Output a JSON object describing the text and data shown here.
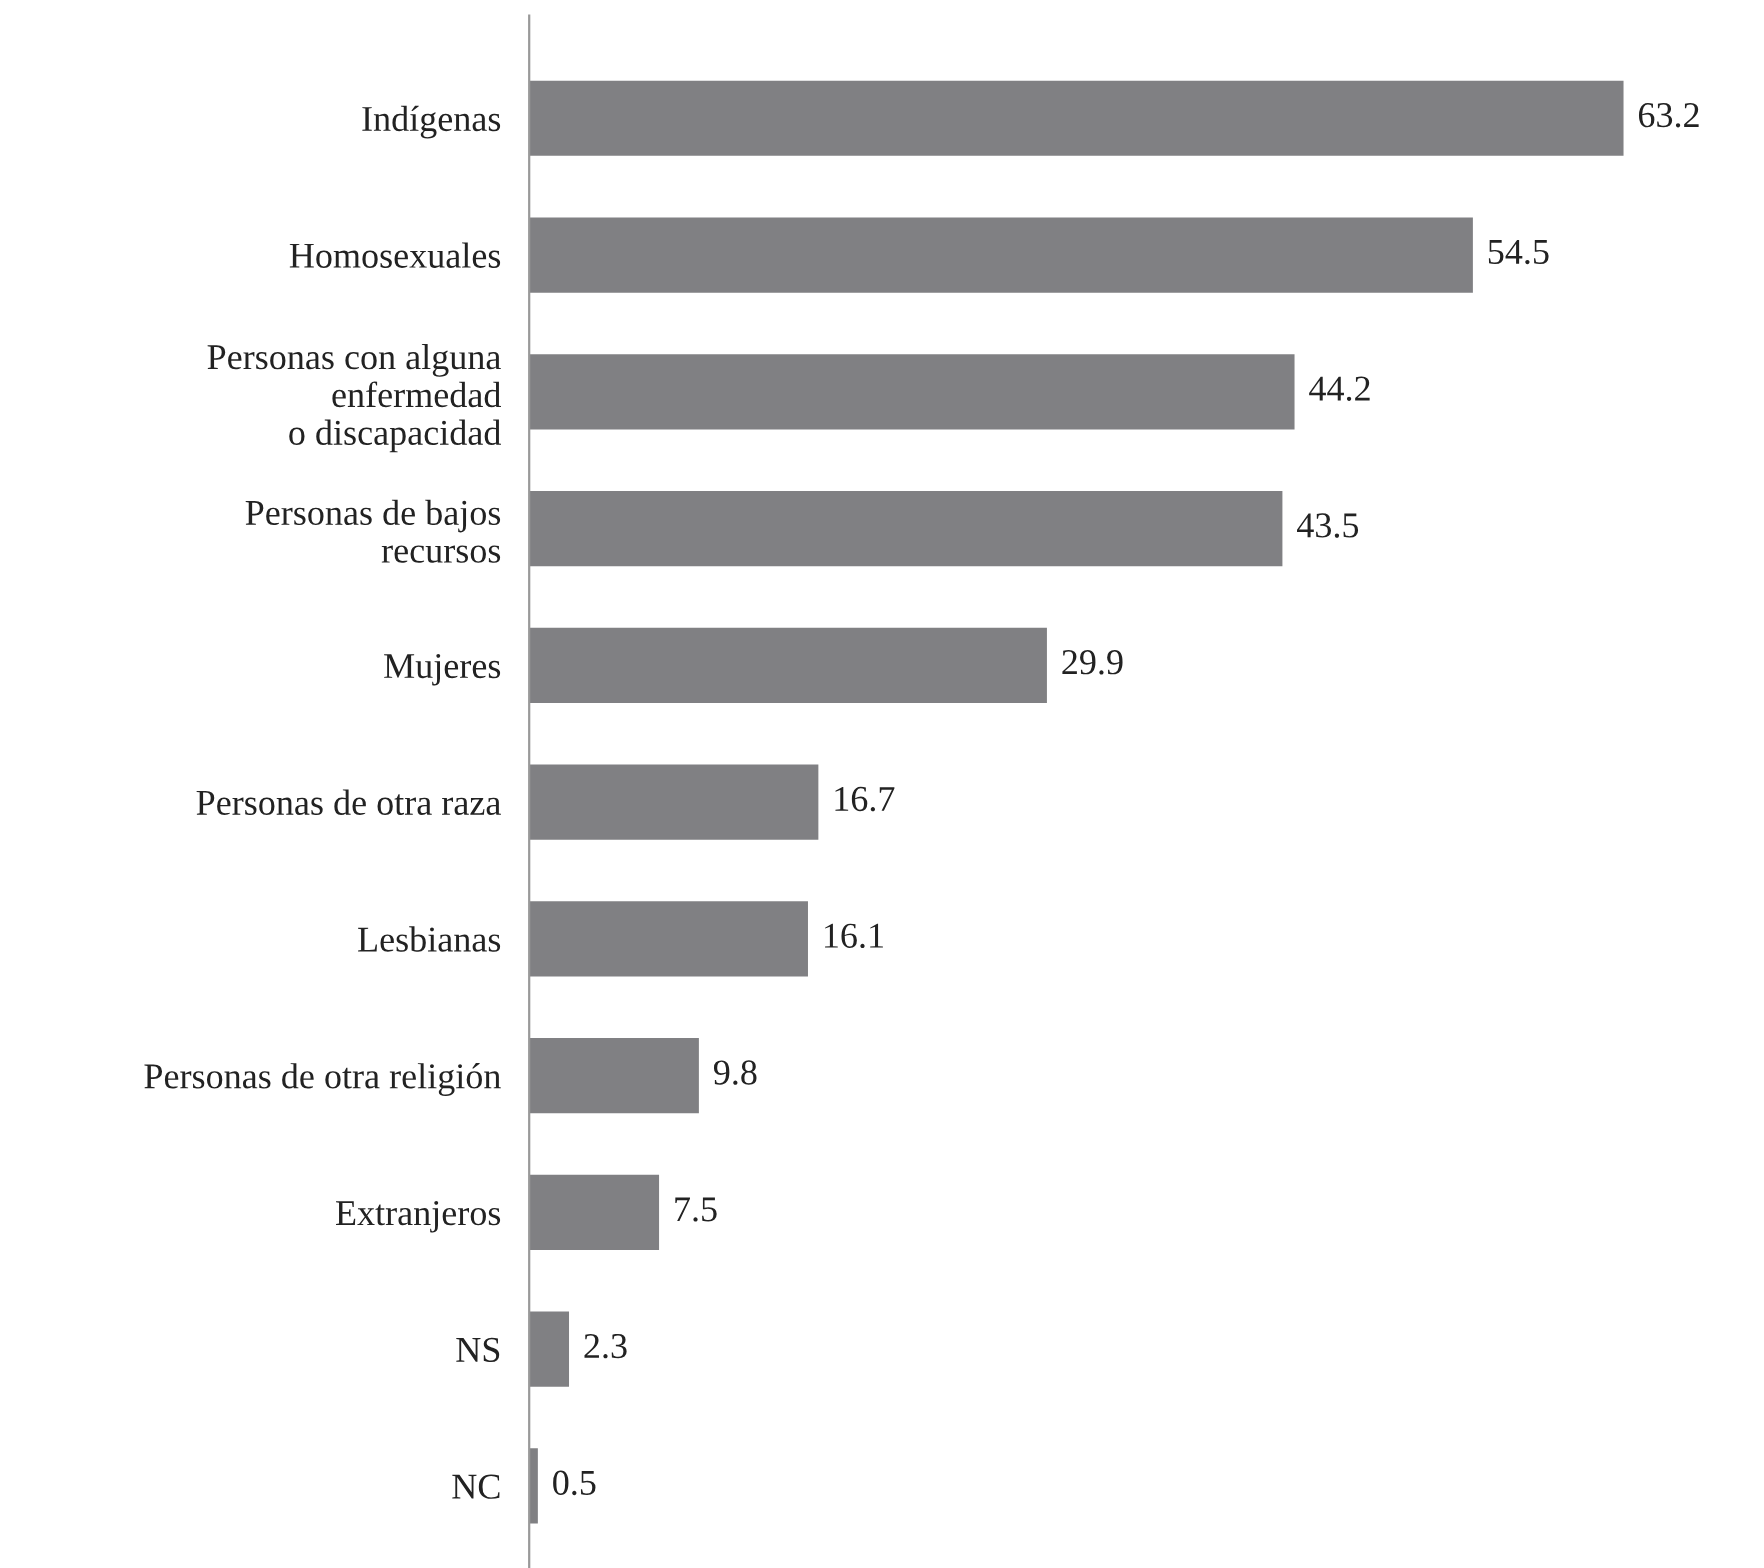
{
  "chart_data": {
    "type": "bar",
    "orientation": "horizontal",
    "relative": false,
    "categories": [
      "Indígenas",
      "Homosexuales",
      "Personas con alguna\nenfermedad\no discapacidad",
      "Personas de bajos\nrecursos",
      "Mujeres",
      "Personas de otra raza",
      "Lesbianas",
      "Personas de otra religión",
      "Extranjeros",
      "NS",
      "NC"
    ],
    "values": [
      63.2,
      54.5,
      44.2,
      43.5,
      29.9,
      16.7,
      16.1,
      9.8,
      7.5,
      2.3,
      0.5
    ],
    "color": "#808083",
    "data_labels": true,
    "grid": false,
    "legend": false
  }
}
